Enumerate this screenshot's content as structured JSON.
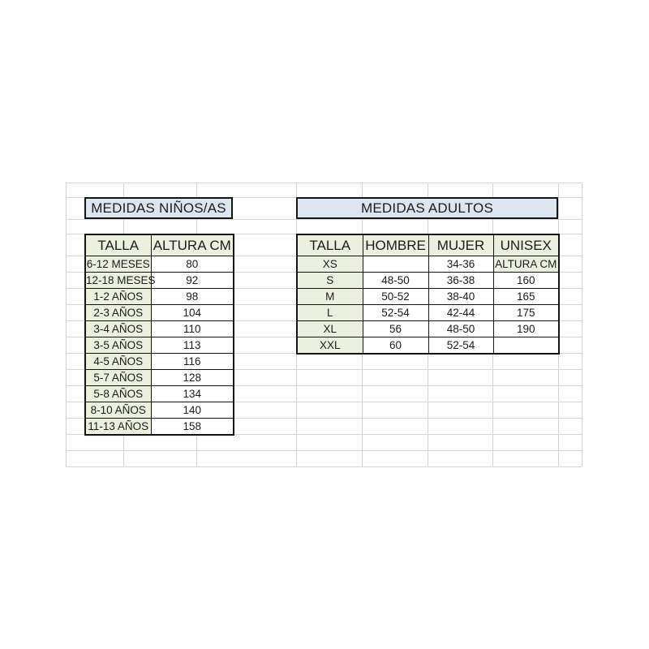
{
  "children_table": {
    "title": "MEDIDAS NIÑOS/AS",
    "headers": [
      "TALLA",
      "ALTURA CM"
    ],
    "rows": [
      [
        "6-12 MESES",
        "80"
      ],
      [
        "12-18 MESES",
        "92"
      ],
      [
        "1-2 AÑOS",
        "98"
      ],
      [
        "2-3 AÑOS",
        "104"
      ],
      [
        "3-4 AÑOS",
        "110"
      ],
      [
        "3-5 AÑOS",
        "113"
      ],
      [
        "4-5 AÑOS",
        "116"
      ],
      [
        "5-7 AÑOS",
        "128"
      ],
      [
        "5-8 AÑOS",
        "134"
      ],
      [
        "8-10 AÑOS",
        "140"
      ],
      [
        "11-13 AÑOS",
        "158"
      ]
    ]
  },
  "adults_table": {
    "title": "MEDIDAS ADULTOS",
    "headers": [
      "TALLA",
      "HOMBRE",
      "MUJER",
      "UNISEX"
    ],
    "rows": [
      [
        "XS",
        "",
        "34-36",
        "ALTURA CM"
      ],
      [
        "S",
        "48-50",
        "36-38",
        "160"
      ],
      [
        "M",
        "50-52",
        "38-40",
        "165"
      ],
      [
        "L",
        "52-54",
        "42-44",
        "175"
      ],
      [
        "XL",
        "56",
        "48-50",
        "190"
      ],
      [
        "XXL",
        "60",
        "52-54",
        ""
      ]
    ]
  },
  "colors": {
    "title_bg": "#dce6f1",
    "header_bg": "#ebf1de",
    "border": "#141414",
    "gridline": "#d4d4d4",
    "text": "#1c1c1c"
  }
}
